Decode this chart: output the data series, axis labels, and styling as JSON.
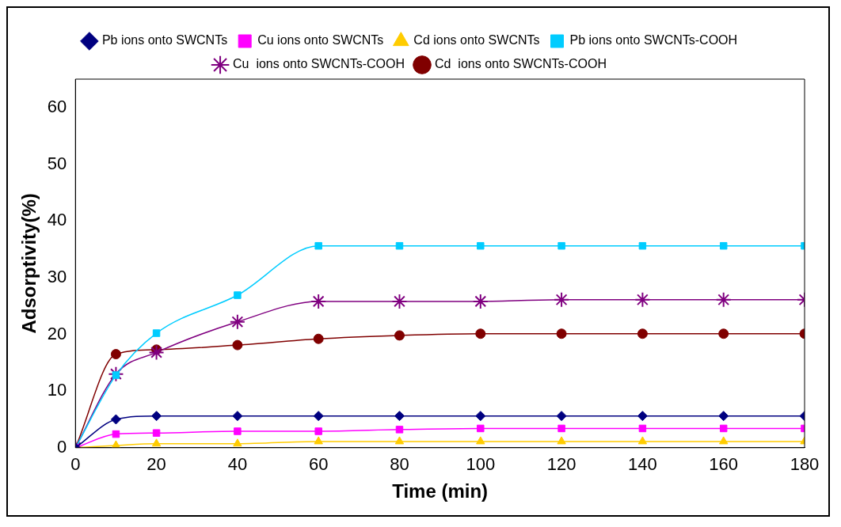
{
  "chart_data": {
    "type": "line",
    "xlabel": "Time (min)",
    "ylabel": "Adsorptivity(%)",
    "x": [
      0,
      10,
      20,
      40,
      60,
      80,
      100,
      120,
      140,
      160,
      180
    ],
    "xlim": [
      0,
      180
    ],
    "xticks": [
      0,
      20,
      40,
      60,
      80,
      100,
      120,
      140,
      160,
      180
    ],
    "ylim": [
      0,
      65
    ],
    "yticks": [
      0,
      10,
      20,
      30,
      40,
      50,
      60
    ],
    "grid": false,
    "legend": "top",
    "series": [
      {
        "name": "Pb ions onto SWCNTs",
        "color": "#000080",
        "marker": "diamond",
        "values": [
          0,
          5,
          5.6,
          5.6,
          5.6,
          5.6,
          5.6,
          5.6,
          5.6,
          5.6,
          5.6
        ]
      },
      {
        "name": "Cu ions onto SWCNTs",
        "color": "#ff00ff",
        "marker": "square",
        "values": [
          0,
          2.4,
          2.6,
          2.9,
          2.9,
          3.2,
          3.4,
          3.4,
          3.4,
          3.4,
          3.4
        ]
      },
      {
        "name": "Cd ions onto SWCNTs",
        "color": "#ffcc00",
        "marker": "triangle",
        "values": [
          0,
          0.4,
          0.7,
          0.7,
          1.1,
          1.1,
          1.1,
          1.1,
          1.1,
          1.1,
          1.1
        ]
      },
      {
        "name": "Pb ions onto SWCNTs-COOH",
        "color": "#00ccff",
        "marker": "square",
        "values": [
          0,
          12.8,
          20.2,
          26.9,
          35.6,
          35.6,
          35.6,
          35.6,
          35.6,
          35.6,
          35.6
        ]
      },
      {
        "name": "Cu  ions onto SWCNTs-COOH",
        "color": "#800080",
        "marker": "cross",
        "values": [
          0,
          13,
          16.8,
          22.2,
          25.8,
          25.8,
          25.8,
          26.1,
          26.1,
          26.1,
          26.1
        ]
      },
      {
        "name": "Cd  ions onto SWCNTs-COOH",
        "color": "#800000",
        "marker": "circle",
        "values": [
          0,
          16.5,
          17.3,
          18.1,
          19.2,
          19.8,
          20.1,
          20.1,
          20.1,
          20.1,
          20.1
        ]
      }
    ]
  }
}
